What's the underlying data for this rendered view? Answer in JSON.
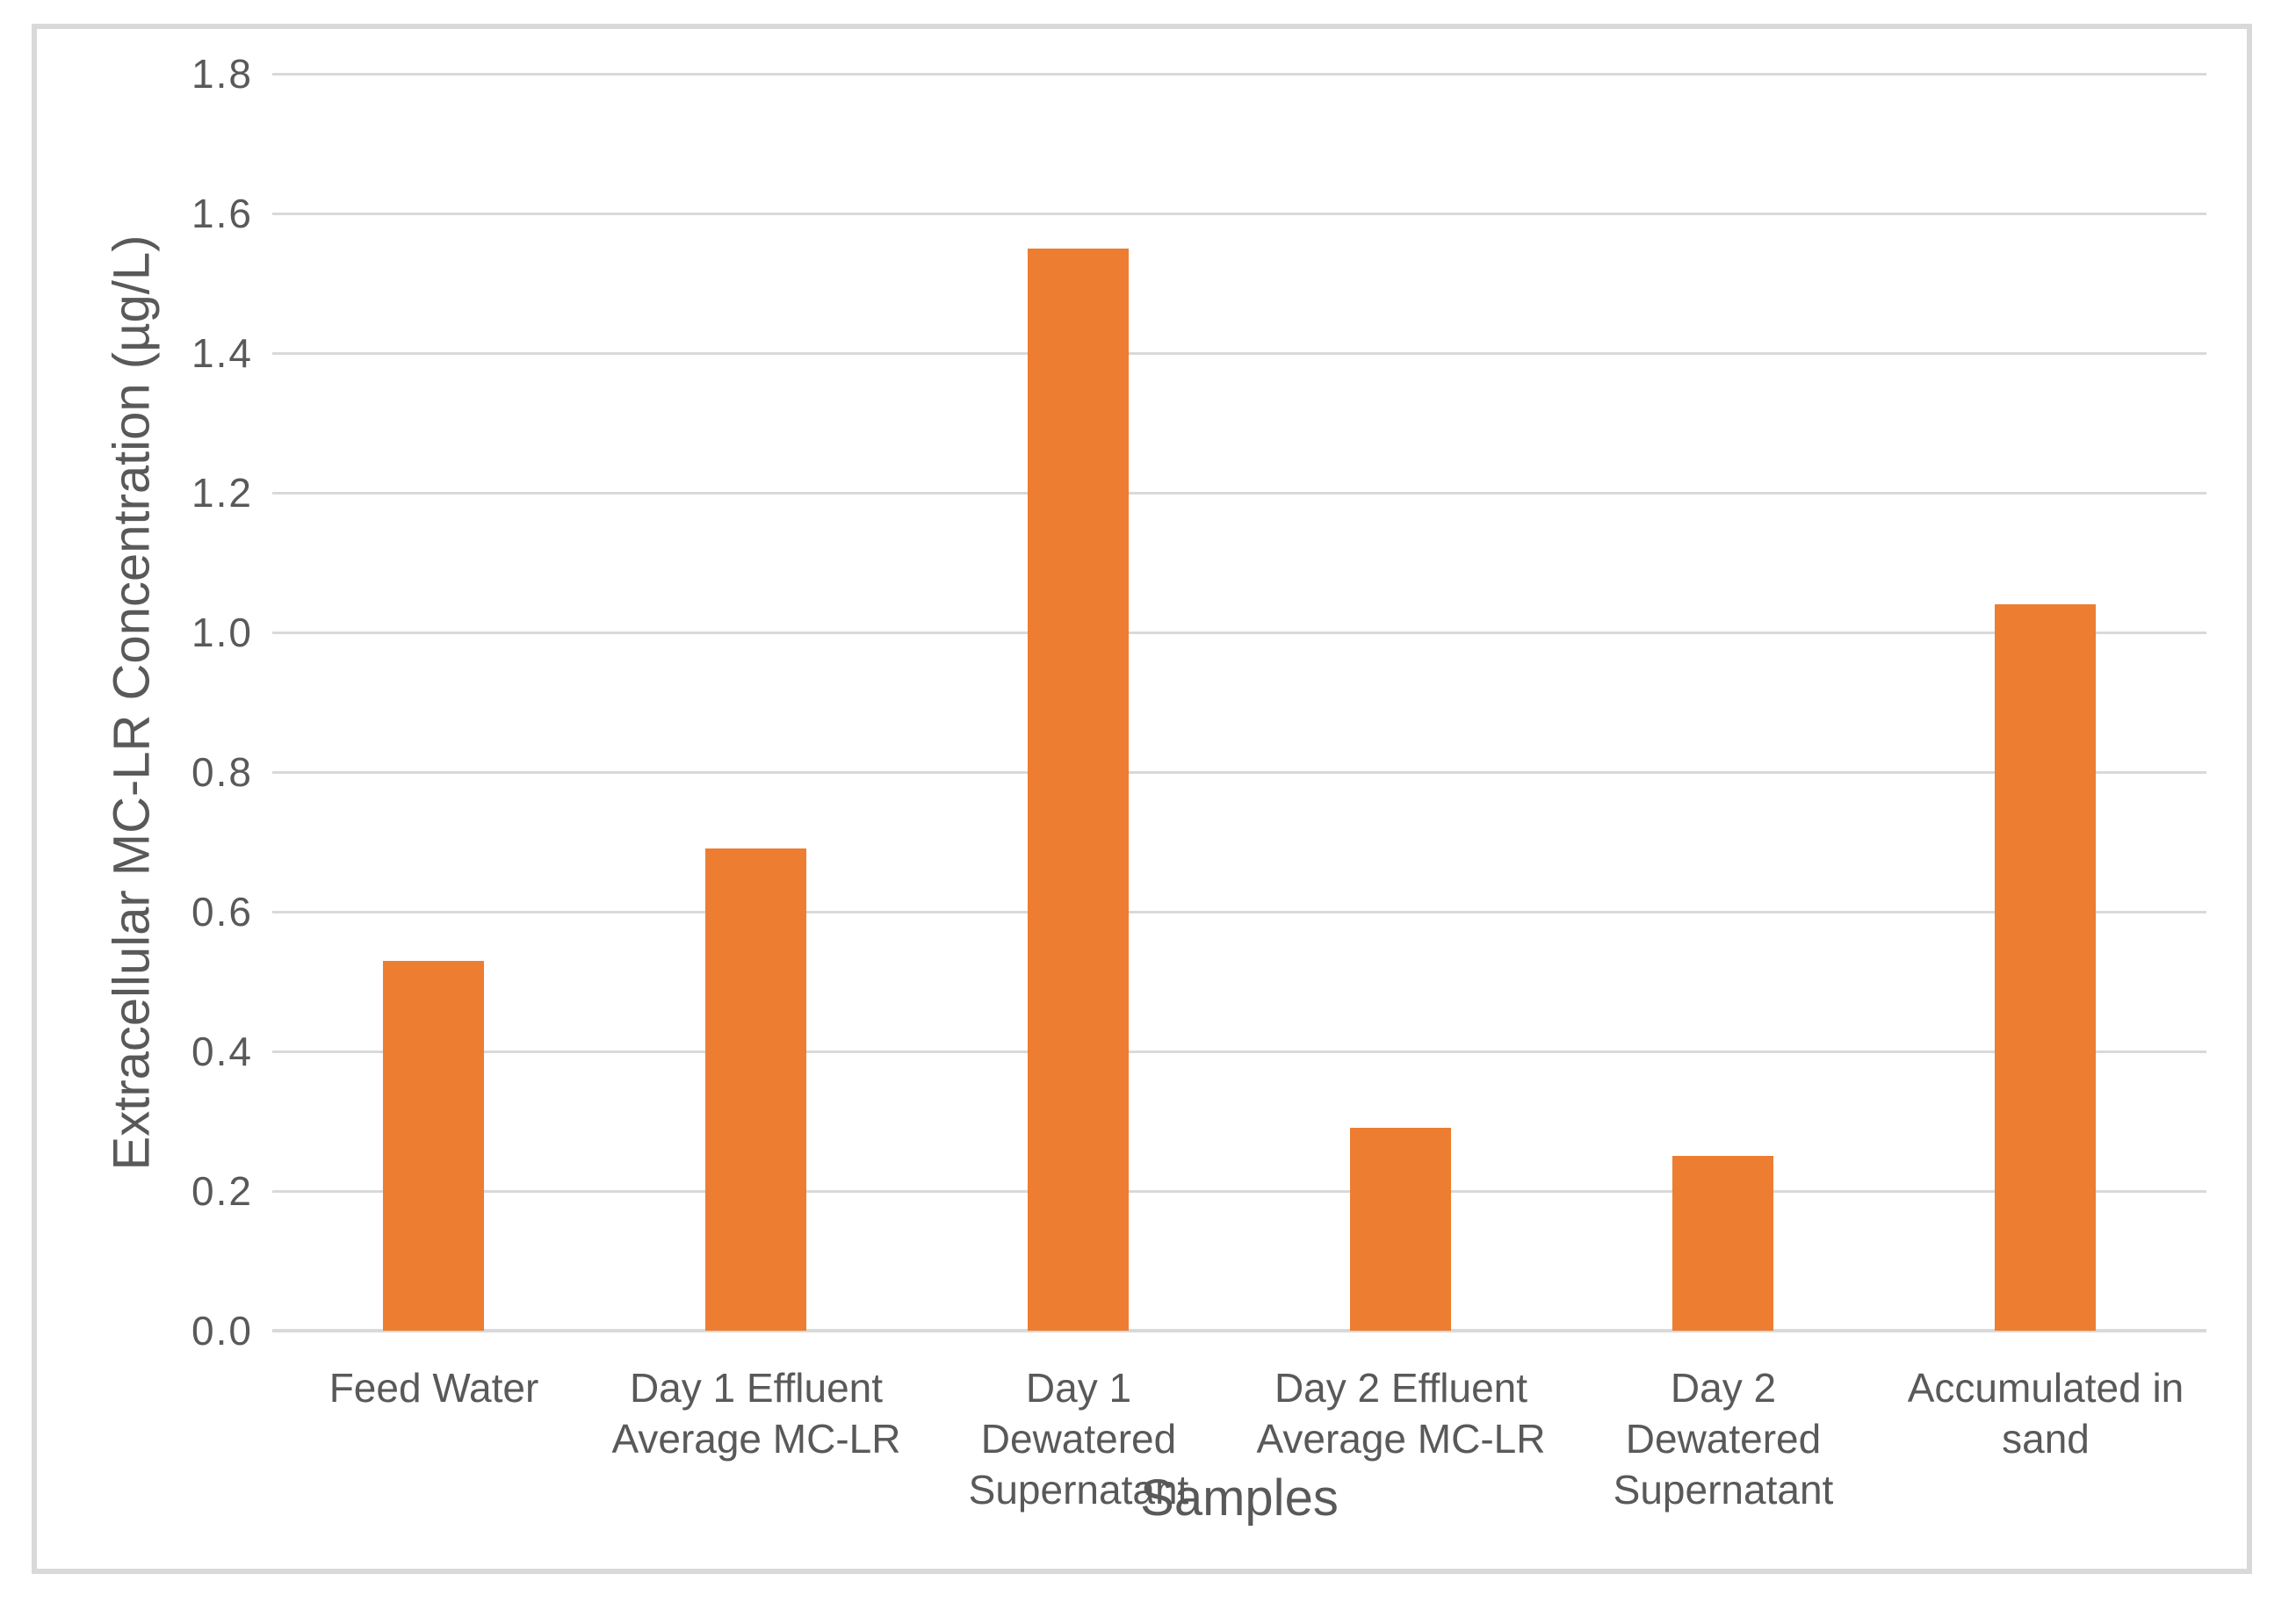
{
  "chart_data": {
    "type": "bar",
    "categories": [
      "Feed Water",
      "Day 1 Effluent Average MC-LR",
      "Day 1 Dewatered Supernatant",
      "Day 2 Effluent Average MC-LR",
      "Day 2 Dewatered Supernatant",
      "Accumulated in sand"
    ],
    "values": [
      0.53,
      0.69,
      1.55,
      0.29,
      0.25,
      1.04
    ],
    "title": "",
    "xlabel": "Samples",
    "ylabel": "Extracellular MC-LR Concentration (µg/L)",
    "ylim": [
      0,
      1.8
    ],
    "ytick_step": 0.2,
    "ytick_labels": [
      "0.0",
      "0.2",
      "0.4",
      "0.6",
      "0.8",
      "1.0",
      "1.2",
      "1.4",
      "1.6",
      "1.8"
    ],
    "grid": "horizontal-only",
    "legend_position": "none",
    "series_count": 1,
    "bar_color": "#ED7D31",
    "grid_color": "#D9D9D9",
    "axis_line_color": "#D9D9D9",
    "text_color": "#595959",
    "frame_color": "#D9D9D9",
    "background_color": "#FFFFFF"
  }
}
